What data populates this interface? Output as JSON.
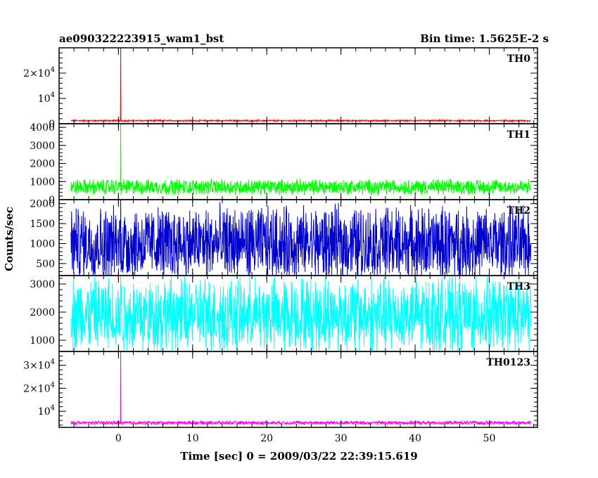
{
  "chart_data": {
    "type": "line",
    "title": "ae090322223915_wam1_bst",
    "subtitle": "Bin time: 1.5625E-2 s",
    "xlabel": "Time [sec] 0 = 2009/03/22 22:39:15.619",
    "ylabel": "Counts/sec",
    "xlim": [
      -8,
      56.5
    ],
    "xticks": [
      "0",
      "10",
      "20",
      "30",
      "40",
      "50"
    ],
    "grid": false,
    "panels": [
      {
        "name": "TH0",
        "color": "#ff0000",
        "ylim": [
          0,
          30000
        ],
        "yticks": [
          {
            "value": 0,
            "base": "0",
            "exp": ""
          },
          {
            "value": 10000,
            "base": "10",
            "exp": "4"
          },
          {
            "value": 20000,
            "base": "2×10",
            "exp": "4"
          }
        ],
        "baseline": 1200,
        "noise": 500,
        "peak_time": 0.3,
        "peak_value": 30000
      },
      {
        "name": "TH1",
        "color": "#00ff00",
        "ylim": [
          0,
          4200
        ],
        "yticks": [
          {
            "value": 0,
            "base": "0",
            "exp": ""
          },
          {
            "value": 1000,
            "base": "1000",
            "exp": ""
          },
          {
            "value": 2000,
            "base": "2000",
            "exp": ""
          },
          {
            "value": 3000,
            "base": "3000",
            "exp": ""
          },
          {
            "value": 4000,
            "base": "4000",
            "exp": ""
          }
        ],
        "baseline": 700,
        "noise": 700,
        "peak_time": 0.3,
        "peak_value": 4200
      },
      {
        "name": "TH2",
        "color": "#0000cc",
        "ylim": [
          200,
          2100
        ],
        "yticks": [
          {
            "value": 500,
            "base": "500",
            "exp": ""
          },
          {
            "value": 1000,
            "base": "1000",
            "exp": ""
          },
          {
            "value": 1500,
            "base": "1500",
            "exp": ""
          },
          {
            "value": 2000,
            "base": "2000",
            "exp": ""
          }
        ],
        "baseline": 1000,
        "noise": 1500,
        "peak_time": 0.3,
        "peak_value": 2100
      },
      {
        "name": "TH3",
        "color": "#00ffff",
        "ylim": [
          600,
          3300
        ],
        "yticks": [
          {
            "value": 1000,
            "base": "1000",
            "exp": ""
          },
          {
            "value": 2000,
            "base": "2000",
            "exp": ""
          },
          {
            "value": 3000,
            "base": "3000",
            "exp": ""
          }
        ],
        "baseline": 1900,
        "noise": 2200,
        "peak_time": 0.3,
        "peak_value": 3200
      },
      {
        "name": "TH0123",
        "color": "#ff00ff",
        "ylim": [
          3000,
          36000
        ],
        "yticks": [
          {
            "value": 10000,
            "base": "10",
            "exp": "4"
          },
          {
            "value": 20000,
            "base": "2×10",
            "exp": "4"
          },
          {
            "value": 30000,
            "base": "3×10",
            "exp": "4"
          }
        ],
        "baseline": 5000,
        "noise": 1300,
        "peak_time": 0.3,
        "peak_value": 36000
      }
    ]
  }
}
